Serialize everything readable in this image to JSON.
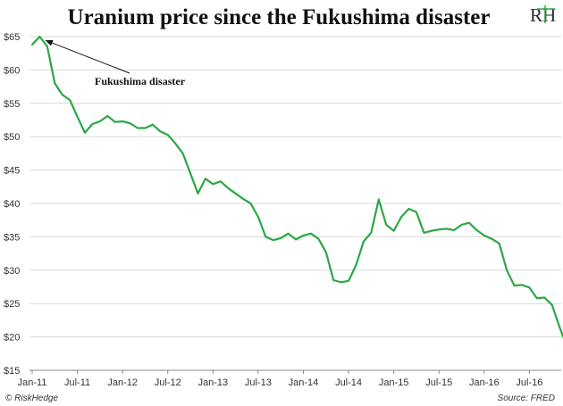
{
  "chart_data": {
    "type": "line",
    "title": "Uranium price since the Fukushima disaster",
    "xlabel": "",
    "ylabel": "",
    "ylim": [
      15,
      65
    ],
    "y_ticks": [
      "$15",
      "$20",
      "$25",
      "$30",
      "$35",
      "$40",
      "$45",
      "$50",
      "$55",
      "$60",
      "$65"
    ],
    "y_tick_values": [
      15,
      20,
      25,
      30,
      35,
      40,
      45,
      50,
      55,
      60,
      65
    ],
    "x_ticks": [
      "Jan-11",
      "Jul-11",
      "Jan-12",
      "Jul-12",
      "Jan-13",
      "Jul-13",
      "Jan-14",
      "Jul-14",
      "Jan-15",
      "Jul-15",
      "Jan-16",
      "Jul-16"
    ],
    "x_tick_index": [
      0,
      6,
      12,
      18,
      24,
      30,
      36,
      42,
      48,
      54,
      60,
      66
    ],
    "grid": "horizontal",
    "line_color": "#2aa845",
    "series": [
      {
        "values": [
          63.8,
          65.0,
          63.5,
          58.0,
          56.3,
          55.5,
          53.0,
          50.6,
          51.9,
          52.3,
          53.1,
          52.2,
          52.3,
          52.0,
          51.3,
          51.3,
          51.8,
          50.8,
          50.3,
          49.0,
          47.5,
          44.5,
          41.5,
          43.7,
          42.9,
          43.3,
          42.3,
          41.5,
          40.7,
          40.0,
          38.0,
          35.0,
          34.5,
          34.8,
          35.5,
          34.6,
          35.2,
          35.5,
          34.7,
          32.7,
          28.5,
          28.2,
          28.4,
          30.8,
          34.3,
          35.6,
          40.6,
          36.8,
          35.9,
          38.0,
          39.2,
          38.7,
          35.6,
          35.9,
          36.1,
          36.2,
          36.0,
          36.8,
          37.1,
          36.0,
          35.2,
          34.7,
          34.0,
          30.0,
          27.7,
          27.8,
          27.4,
          25.8,
          25.9,
          24.8,
          21.5,
          18.5
        ]
      }
    ],
    "annotations": [
      {
        "text": "Fukushima disaster",
        "x_index": 2,
        "y_value": 63.5
      }
    ]
  },
  "logo": {
    "text": "RH"
  },
  "footer": {
    "left": "© RiskHedge",
    "right": "Source: FRED"
  }
}
